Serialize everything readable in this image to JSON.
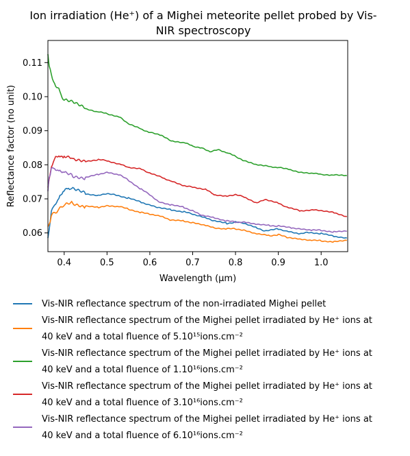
{
  "chart_data": {
    "type": "line",
    "title_line1": "Ion irradiation (He⁺) of a Mighei meteorite pellet probed by Vis-",
    "title_line2": "NIR spectroscopy",
    "xlabel": "Wavelength (μm)",
    "ylabel": "Reflectance factor (no unit)",
    "xlim": [
      0.362,
      1.062
    ],
    "ylim": [
      0.0545,
      0.1165
    ],
    "xticks": [
      "0.4",
      "0.5",
      "0.6",
      "0.7",
      "0.8",
      "0.9",
      "1.0"
    ],
    "xtick_values": [
      0.4,
      0.5,
      0.6,
      0.7,
      0.8,
      0.9,
      1.0
    ],
    "yticks": [
      "0.06",
      "0.07",
      "0.08",
      "0.09",
      "0.10",
      "0.11"
    ],
    "ytick_values": [
      0.06,
      0.07,
      0.08,
      0.09,
      0.1,
      0.11
    ],
    "grid": false,
    "legend_position": "below",
    "series": [
      {
        "color": "#1f77b4",
        "legend": [
          "Vis-NIR reflectance spectrum of the non-irradiated Mighei pellet"
        ],
        "x": [
          0.362,
          0.37,
          0.38,
          0.39,
          0.4,
          0.41,
          0.42,
          0.45,
          0.48,
          0.5,
          0.52,
          0.55,
          0.58,
          0.6,
          0.62,
          0.65,
          0.68,
          0.7,
          0.73,
          0.75,
          0.78,
          0.8,
          0.82,
          0.85,
          0.87,
          0.9,
          0.92,
          0.95,
          0.97,
          1.0,
          1.03,
          1.06
        ],
        "y": [
          0.0585,
          0.066,
          0.069,
          0.0705,
          0.0725,
          0.0733,
          0.0728,
          0.0715,
          0.071,
          0.0715,
          0.0712,
          0.0702,
          0.069,
          0.0682,
          0.0674,
          0.0668,
          0.0662,
          0.0655,
          0.0645,
          0.0635,
          0.0628,
          0.0632,
          0.0628,
          0.0615,
          0.0605,
          0.0612,
          0.0605,
          0.0597,
          0.0602,
          0.0598,
          0.059,
          0.0585
        ]
      },
      {
        "color": "#ff7f0e",
        "legend": [
          "Vis-NIR reflectance spectrum of the Mighei pellet irradiated by He⁺ ions at",
          "40 keV and a total fluence of 5.10¹⁵ions.cm⁻²"
        ],
        "x": [
          0.362,
          0.37,
          0.38,
          0.39,
          0.4,
          0.42,
          0.45,
          0.48,
          0.5,
          0.53,
          0.55,
          0.58,
          0.6,
          0.63,
          0.65,
          0.68,
          0.7,
          0.73,
          0.75,
          0.78,
          0.8,
          0.82,
          0.85,
          0.88,
          0.9,
          0.92,
          0.95,
          0.98,
          1.0,
          1.03,
          1.06
        ],
        "y": [
          0.0618,
          0.0648,
          0.0662,
          0.0672,
          0.0682,
          0.0688,
          0.0678,
          0.0675,
          0.068,
          0.0677,
          0.067,
          0.066,
          0.0655,
          0.0648,
          0.0637,
          0.0635,
          0.063,
          0.0622,
          0.0615,
          0.0612,
          0.0612,
          0.0608,
          0.0597,
          0.0592,
          0.0595,
          0.0587,
          0.0582,
          0.0578,
          0.0577,
          0.0574,
          0.0578
        ]
      },
      {
        "color": "#2ca02c",
        "legend": [
          "Vis-NIR reflectance spectrum of the Mighei pellet irradiated by He⁺ ions at",
          "40 keV and a total fluence of 1.10¹⁶ions.cm⁻²"
        ],
        "x": [
          0.362,
          0.365,
          0.37,
          0.375,
          0.38,
          0.39,
          0.4,
          0.42,
          0.45,
          0.48,
          0.5,
          0.53,
          0.55,
          0.58,
          0.6,
          0.63,
          0.65,
          0.68,
          0.7,
          0.72,
          0.74,
          0.76,
          0.78,
          0.8,
          0.82,
          0.85,
          0.88,
          0.9,
          0.93,
          0.95,
          0.98,
          1.0,
          1.03,
          1.06
        ],
        "y": [
          0.1125,
          0.109,
          0.1065,
          0.1045,
          0.103,
          0.1015,
          0.099,
          0.0985,
          0.0965,
          0.0955,
          0.095,
          0.094,
          0.092,
          0.0905,
          0.0895,
          0.0885,
          0.087,
          0.0865,
          0.0855,
          0.085,
          0.0838,
          0.0845,
          0.0835,
          0.0825,
          0.0812,
          0.08,
          0.0795,
          0.0792,
          0.0785,
          0.0778,
          0.0775,
          0.0772,
          0.077,
          0.0768
        ]
      },
      {
        "color": "#d62728",
        "legend": [
          "Vis-NIR reflectance spectrum of the Mighei pellet irradiated by He⁺ ions at",
          "40 keV and a total fluence of 3.10¹⁶ions.cm⁻²"
        ],
        "x": [
          0.362,
          0.37,
          0.38,
          0.39,
          0.4,
          0.42,
          0.45,
          0.48,
          0.5,
          0.53,
          0.55,
          0.58,
          0.6,
          0.63,
          0.65,
          0.68,
          0.7,
          0.73,
          0.75,
          0.78,
          0.8,
          0.82,
          0.85,
          0.87,
          0.9,
          0.92,
          0.95,
          0.98,
          1.0,
          1.03,
          1.06
        ],
        "y": [
          0.0735,
          0.0795,
          0.082,
          0.0828,
          0.0822,
          0.0818,
          0.081,
          0.0815,
          0.0812,
          0.0802,
          0.0792,
          0.0788,
          0.0775,
          0.0762,
          0.0752,
          0.0738,
          0.0735,
          0.0728,
          0.0712,
          0.0708,
          0.0712,
          0.0706,
          0.0688,
          0.0698,
          0.0688,
          0.0675,
          0.0665,
          0.0668,
          0.0665,
          0.066,
          0.0648
        ]
      },
      {
        "color": "#9467bd",
        "legend": [
          "Vis-NIR reflectance spectrum of the Mighei pellet irradiated by He⁺ ions at",
          "40 keV and a total fluence of 6.10¹⁶ions.cm⁻²"
        ],
        "x": [
          0.362,
          0.365,
          0.37,
          0.38,
          0.39,
          0.4,
          0.42,
          0.45,
          0.48,
          0.5,
          0.53,
          0.55,
          0.58,
          0.6,
          0.62,
          0.65,
          0.68,
          0.7,
          0.72,
          0.75,
          0.78,
          0.8,
          0.82,
          0.85,
          0.88,
          0.9,
          0.93,
          0.95,
          0.98,
          1.0,
          1.03,
          1.06
        ],
        "y": [
          0.0725,
          0.0765,
          0.0785,
          0.079,
          0.078,
          0.0778,
          0.0768,
          0.0762,
          0.0772,
          0.0778,
          0.077,
          0.0755,
          0.0728,
          0.0712,
          0.0692,
          0.0682,
          0.0675,
          0.0665,
          0.0652,
          0.0645,
          0.0635,
          0.0632,
          0.0632,
          0.0625,
          0.0622,
          0.062,
          0.0615,
          0.0612,
          0.0608,
          0.0608,
          0.0603,
          0.0605
        ]
      }
    ]
  }
}
